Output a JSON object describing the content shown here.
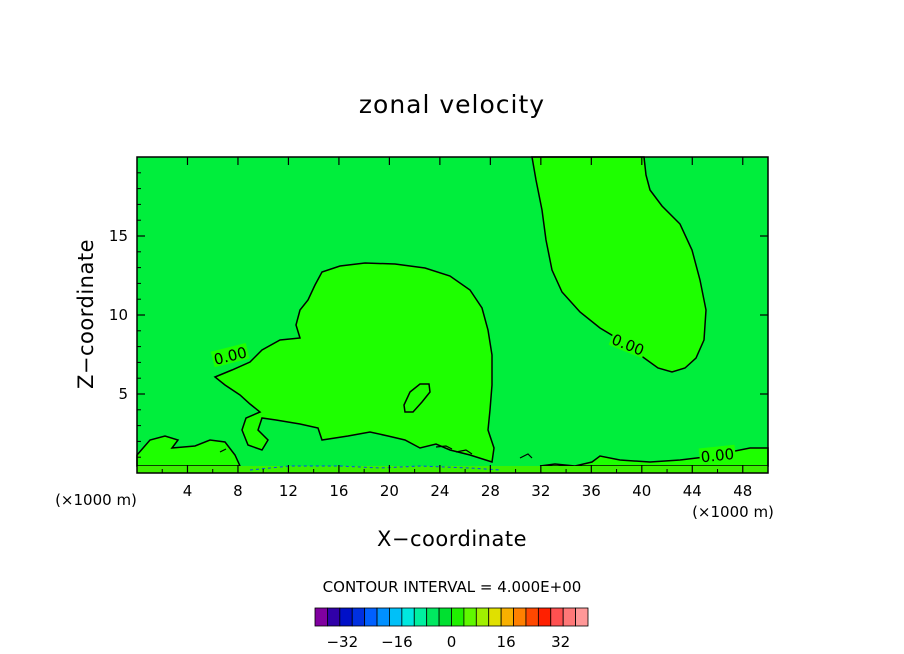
{
  "chart_data": {
    "type": "contour",
    "title": "zonal velocity",
    "xlabel": "X−coordinate",
    "ylabel": "Z−coordinate",
    "x_unit": "(×1000 m)",
    "x_unit_right": "(×1000 m)",
    "xlim": [
      0,
      50
    ],
    "ylim": [
      0,
      20
    ],
    "x_ticks": [
      4,
      8,
      12,
      16,
      20,
      24,
      28,
      32,
      36,
      40,
      44,
      48
    ],
    "y_ticks": [
      5,
      10,
      15
    ],
    "contour_interval_text": "CONTOUR INTERVAL = 4.000E+00",
    "contour_labels": [
      {
        "text": "0.00",
        "x": 7.4,
        "y": 7.4
      },
      {
        "text": "0.00",
        "x": 38.9,
        "y": 8.1
      },
      {
        "text": "0.00",
        "x": 46.0,
        "y": 1.1
      }
    ],
    "colorbar": {
      "tick_labels": [
        "−32",
        "−16",
        "0",
        "16",
        "32"
      ],
      "tick_values": [
        -32,
        -16,
        0,
        16,
        32
      ],
      "min": -40,
      "max": 40,
      "colors": [
        "#8000a0",
        "#3000a8",
        "#0010c8",
        "#0030e0",
        "#0060ff",
        "#0090ff",
        "#00c0f8",
        "#00e8e0",
        "#00f0a0",
        "#00e860",
        "#00e030",
        "#20f000",
        "#60f800",
        "#a0f000",
        "#e0e000",
        "#f8b000",
        "#ff8000",
        "#ff4800",
        "#ff2000",
        "#ff5050",
        "#ff7878",
        "#ff9898"
      ]
    },
    "background_color": "#00ee3c",
    "positive_region_color": "#1eff00"
  }
}
